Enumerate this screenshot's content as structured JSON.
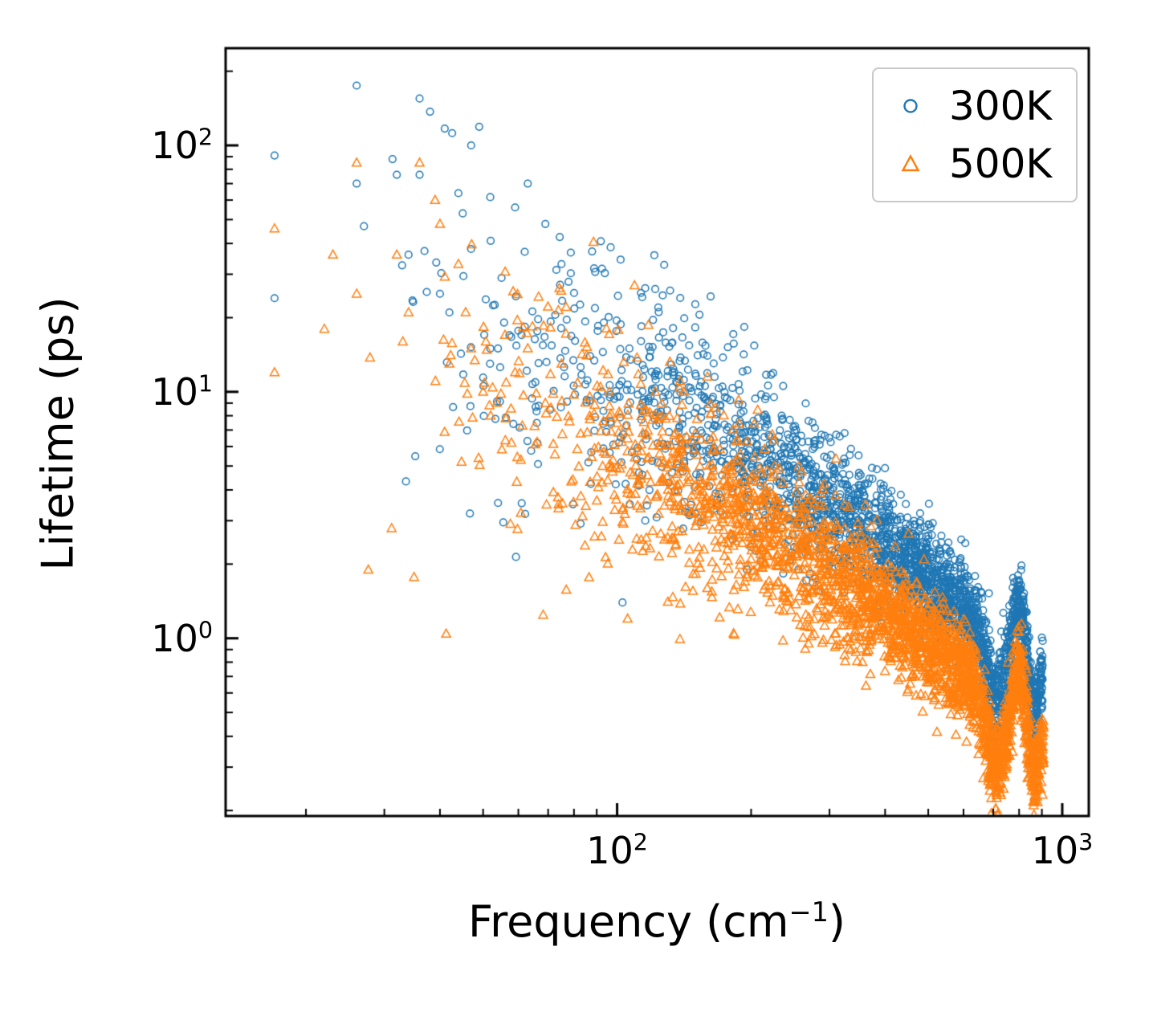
{
  "figure": {
    "background": "#ffffff",
    "axes": {
      "ylabel": "Lifetime (ps)",
      "xlabel_prefix": "Frequency (cm",
      "xlabel_sup": "−1",
      "xlabel_suffix": ")",
      "xscale": "log",
      "yscale": "log",
      "xticks": [
        {
          "value": 100,
          "base": "10",
          "exp": "2"
        },
        {
          "value": 1000,
          "base": "10",
          "exp": "3"
        }
      ],
      "yticks": [
        {
          "value": 1,
          "base": "10",
          "exp": "0"
        },
        {
          "value": 10,
          "base": "10",
          "exp": "1"
        },
        {
          "value": 100,
          "base": "10",
          "exp": "2"
        }
      ]
    },
    "legend": {
      "items": [
        {
          "label": "300K",
          "marker": "circle",
          "color": "#1f77b4"
        },
        {
          "label": "500K",
          "marker": "triangle",
          "color": "#ff7f0e"
        }
      ]
    }
  },
  "chart_data": {
    "type": "scatter",
    "title": "",
    "xlabel": "Frequency (cm^-1)",
    "ylabel": "Lifetime (ps)",
    "xscale": "log",
    "yscale": "log",
    "xlim": [
      13.2,
      1147
    ],
    "ylim": [
      0.19,
      248
    ],
    "grid": false,
    "legend_position": "upper right",
    "description": "Phonon lifetime vs frequency on log-log axes; dense power-law point clouds. 300K (blue open circles) lies above 500K (orange open triangles). Both show a dip near 700 cm^-1, a narrow bump near 800 cm^-1, and end near 900 cm^-1.",
    "series": [
      {
        "name": "300K",
        "color": "#1f77b4",
        "marker": "circle",
        "n_points": 2600,
        "seed": 42,
        "freq_log10_range": [
          1.23,
          2.956
        ],
        "density_exponent": 0.28,
        "trend_log10": {
          "a": 0.852,
          "b": 0.989,
          "c": -0.45,
          "offset": 0
        },
        "scatter_sigma": {
          "base": 0.08,
          "amp": 0.42,
          "u_ref": 2.95,
          "span": 1.72,
          "power": 1.5
        },
        "features": [
          {
            "center_log10": 2.85,
            "sigma_log10": 0.02,
            "amp": -0.26
          },
          {
            "center_log10": 2.9,
            "sigma_log10": 0.012,
            "amp": 0.22
          },
          {
            "center_log10": 2.937,
            "sigma_log10": 0.008,
            "amp": -0.15
          }
        ],
        "anchor_points": [
          [
            17,
            91
          ],
          [
            17,
            24
          ],
          [
            26,
            70
          ],
          [
            26,
            175
          ],
          [
            27,
            47
          ],
          [
            32,
            76
          ],
          [
            36,
            155
          ],
          [
            36,
            76
          ],
          [
            34,
            36
          ],
          [
            38,
            137
          ],
          [
            41,
            117
          ],
          [
            44,
            64
          ],
          [
            47,
            100
          ],
          [
            49,
            119
          ],
          [
            45,
            53
          ],
          [
            40,
            25
          ],
          [
            42,
            21
          ],
          [
            52,
            41
          ],
          [
            55,
            29
          ],
          [
            59,
            56
          ],
          [
            63,
            70
          ],
          [
            62,
            37
          ],
          [
            69,
            48
          ],
          [
            75,
            33
          ],
          [
            61,
            17
          ],
          [
            54,
            15
          ]
        ]
      },
      {
        "name": "500K",
        "color": "#ff7f0e",
        "marker": "triangle",
        "n_points": 2600,
        "seed": 1337,
        "freq_log10_range": [
          1.23,
          2.958
        ],
        "density_exponent": 0.28,
        "trend_log10": {
          "a": 0.852,
          "b": 0.989,
          "c": -0.45,
          "offset": -0.27
        },
        "scatter_sigma": {
          "base": 0.08,
          "amp": 0.42,
          "u_ref": 2.95,
          "span": 1.72,
          "power": 1.5
        },
        "features": [
          {
            "center_log10": 2.85,
            "sigma_log10": 0.02,
            "amp": -0.26
          },
          {
            "center_log10": 2.9,
            "sigma_log10": 0.012,
            "amp": 0.22
          },
          {
            "center_log10": 2.937,
            "sigma_log10": 0.008,
            "amp": -0.18
          }
        ],
        "anchor_points": [
          [
            17,
            46
          ],
          [
            17,
            12
          ],
          [
            22,
            18
          ],
          [
            23,
            36
          ],
          [
            26,
            85
          ],
          [
            26,
            25
          ],
          [
            32,
            36
          ],
          [
            33,
            16
          ],
          [
            34,
            21
          ],
          [
            36,
            85
          ],
          [
            39,
            60
          ],
          [
            40,
            48
          ],
          [
            42,
            13
          ],
          [
            44,
            33
          ],
          [
            47,
            15
          ],
          [
            50,
            10
          ],
          [
            52,
            8
          ],
          [
            56,
            17
          ],
          [
            59,
            12
          ],
          [
            63,
            15
          ],
          [
            69,
            9
          ],
          [
            75,
            13
          ]
        ]
      }
    ]
  }
}
